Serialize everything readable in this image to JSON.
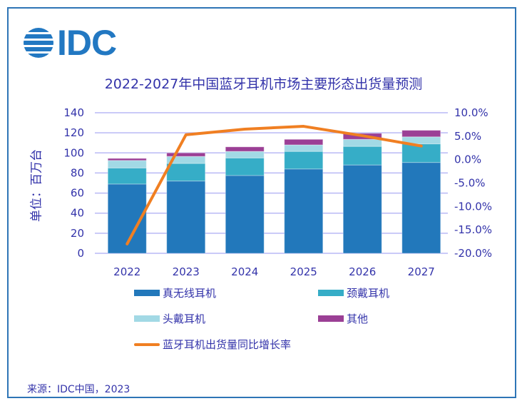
{
  "header": {
    "logo_text": "IDC",
    "title": "2022-2027年中国蓝牙耳机市场主要形态出货量预测"
  },
  "footer": {
    "source": "来源：IDC中国，2023"
  },
  "colors": {
    "tws": "#2278bb",
    "neckband": "#36adc7",
    "headphone": "#a2d9e5",
    "other": "#9b3f95",
    "growth": "#f07f22",
    "grid": "#b9b9f5",
    "text": "#3333aa",
    "frame": "#2e75b6"
  },
  "chart_data": {
    "type": "bar",
    "stacked": true,
    "title": "2022-2027年中国蓝牙耳机市场主要形态出货量预测",
    "xlabel": "",
    "ylabel": "单位：百万台",
    "categories": [
      "2022",
      "2023",
      "2024",
      "2025",
      "2026",
      "2027"
    ],
    "ylim": [
      0,
      140
    ],
    "yticks": [
      "0",
      "20",
      "40",
      "60",
      "80",
      "100",
      "120",
      "140"
    ],
    "y2lim": [
      -20,
      10
    ],
    "y2ticks": [
      "-20.0%",
      "-15.0%",
      "-10.0%",
      "-5.0%",
      "0.0%",
      "5.0%",
      "10.0%"
    ],
    "grid": true,
    "legend_position": "bottom",
    "series": [
      {
        "name": "真无线耳机",
        "key": "tws",
        "values": [
          69,
          72,
          77.5,
          84,
          88,
          90.5
        ]
      },
      {
        "name": "颈戴耳机",
        "key": "neckband",
        "values": [
          16,
          17.5,
          17.5,
          17.5,
          18.5,
          18.5
        ]
      },
      {
        "name": "头戴耳机",
        "key": "headphone",
        "values": [
          7.5,
          7,
          6.5,
          6.5,
          7,
          7
        ]
      },
      {
        "name": "其他",
        "key": "other",
        "values": [
          2,
          3.5,
          4.5,
          5.5,
          6,
          6.5
        ]
      }
    ],
    "line_series": {
      "name": "蓝牙耳机出货量同比增长率",
      "key": "growth",
      "axis": "right",
      "unit": "%",
      "values": [
        -18.0,
        5.3,
        6.5,
        7.1,
        5.1,
        2.9
      ]
    }
  }
}
